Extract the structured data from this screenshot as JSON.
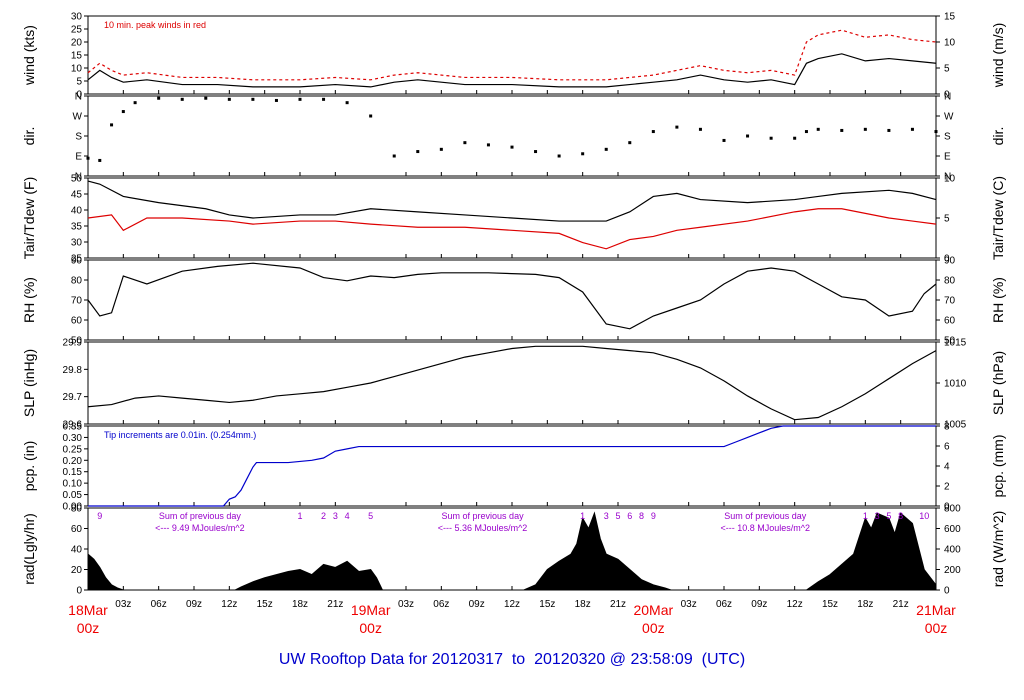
{
  "footer": {
    "title_prefix": "UW Rooftop Data for ",
    "start": "20120317",
    "to_word": "to",
    "end": "20120320",
    "at_word": "@",
    "time": "23:58:09",
    "tz": "(UTC)"
  },
  "colors": {
    "black": "#000000",
    "red": "#dd0000",
    "blue": "#0000cc",
    "purple": "#9900cc",
    "date_red": "#ee0000"
  },
  "x_axis": {
    "hours_total": 72,
    "hour_tick_labels": [
      "03z",
      "06z",
      "09z",
      "12z",
      "15z",
      "18z",
      "21z",
      "03z",
      "06z",
      "09z",
      "12z",
      "15z",
      "18z",
      "21z",
      "03z",
      "06z",
      "09z",
      "12z",
      "15z",
      "18z",
      "21z"
    ],
    "hour_tick_hours": [
      3,
      6,
      9,
      12,
      15,
      18,
      21,
      27,
      30,
      33,
      36,
      39,
      42,
      45,
      51,
      54,
      57,
      60,
      63,
      66,
      69
    ],
    "date_labels": [
      {
        "hour": 0,
        "date": "18Mar",
        "time": "00z"
      },
      {
        "hour": 24,
        "date": "19Mar",
        "time": "00z"
      },
      {
        "hour": 48,
        "date": "20Mar",
        "time": "00z"
      },
      {
        "hour": 72,
        "date": "21Mar",
        "time": "00z"
      }
    ]
  },
  "chart_data": [
    {
      "type": "line",
      "id": "wind",
      "ylabel_left": "wind (kts)",
      "ylabel_right": "wind (m/s)",
      "left_ticks": [
        "0",
        "5",
        "10",
        "15",
        "20",
        "25",
        "30"
      ],
      "right_ticks": [
        "0",
        "5",
        "10",
        "15"
      ],
      "ylim": [
        0,
        33
      ],
      "annotation": "10 min. peak winds in red",
      "series": [
        {
          "color": "black",
          "x": [
            0,
            1,
            2,
            3,
            5,
            8,
            11,
            14,
            18,
            21,
            24,
            26,
            28,
            32,
            36,
            40,
            44,
            48,
            50,
            52,
            54,
            56,
            58,
            60,
            61,
            62,
            64,
            66,
            68,
            70,
            72
          ],
          "y": [
            6,
            10,
            7,
            5,
            6,
            4,
            4,
            3,
            3,
            4,
            3,
            5,
            6,
            4,
            4,
            3,
            3,
            5,
            6,
            8,
            6,
            5,
            6,
            4,
            13,
            15,
            17,
            14,
            15,
            14,
            13
          ]
        },
        {
          "color": "red",
          "x": [
            0,
            1,
            2,
            3,
            5,
            8,
            11,
            14,
            18,
            21,
            24,
            26,
            28,
            32,
            36,
            40,
            44,
            48,
            50,
            52,
            54,
            56,
            58,
            60,
            61,
            62,
            64,
            66,
            68,
            70,
            72
          ],
          "y": [
            9,
            13,
            10,
            8,
            9,
            7,
            7,
            6,
            6,
            7,
            6,
            8,
            9,
            7,
            7,
            6,
            6,
            8,
            10,
            12,
            10,
            9,
            10,
            8,
            22,
            25,
            27,
            24,
            25,
            23,
            22
          ]
        }
      ]
    },
    {
      "type": "scatter",
      "id": "dir",
      "ylabel_left": "dir.",
      "ylabel_right": "dir.",
      "left_ticks": [
        "N",
        "E",
        "S",
        "W",
        "N"
      ],
      "right_ticks": [
        "N",
        "E",
        "S",
        "W",
        "N"
      ],
      "ylim": [
        0,
        360
      ],
      "series": [
        {
          "color": "black",
          "x": [
            0,
            1,
            2,
            3,
            4,
            6,
            8,
            10,
            12,
            14,
            16,
            18,
            20,
            22,
            24,
            26,
            28,
            30,
            32,
            34,
            36,
            38,
            40,
            42,
            44,
            46,
            48,
            50,
            52,
            54,
            56,
            58,
            60,
            61,
            62,
            64,
            66,
            68,
            70,
            72
          ],
          "y": [
            80,
            70,
            230,
            290,
            330,
            350,
            345,
            350,
            345,
            345,
            340,
            345,
            345,
            330,
            270,
            90,
            110,
            120,
            150,
            140,
            130,
            110,
            90,
            100,
            120,
            150,
            200,
            220,
            210,
            160,
            180,
            170,
            170,
            200,
            210,
            205,
            210,
            205,
            210,
            200
          ]
        }
      ]
    },
    {
      "type": "line",
      "id": "temp",
      "ylabel_left": "Tair/Tdew (F)",
      "ylabel_right": "Tair/Tdew (C)",
      "left_ticks": [
        "25",
        "30",
        "35",
        "40",
        "45",
        "50"
      ],
      "right_ticks": [
        "0",
        "5",
        "10"
      ],
      "ylim": [
        24,
        50
      ],
      "series": [
        {
          "name": "Tair",
          "color": "black",
          "x": [
            0,
            1,
            3,
            6,
            10,
            12,
            14,
            18,
            21,
            24,
            28,
            32,
            36,
            40,
            44,
            46,
            48,
            50,
            52,
            56,
            60,
            62,
            64,
            68,
            70,
            72
          ],
          "y": [
            49,
            48,
            44,
            42,
            40,
            38,
            37,
            38,
            38,
            40,
            39,
            38,
            37,
            36,
            36,
            39,
            44,
            45,
            43,
            42,
            43,
            44,
            45,
            46,
            45,
            43
          ]
        },
        {
          "name": "Tdew",
          "color": "red",
          "x": [
            0,
            2,
            3,
            5,
            8,
            12,
            14,
            18,
            21,
            24,
            28,
            32,
            36,
            40,
            42,
            44,
            46,
            48,
            50,
            52,
            56,
            60,
            62,
            64,
            68,
            70,
            72
          ],
          "y": [
            37,
            38,
            33,
            37,
            37,
            36,
            35,
            36,
            36,
            35,
            34,
            34,
            33,
            32,
            29,
            27,
            30,
            31,
            33,
            34,
            36,
            39,
            40,
            40,
            37,
            36,
            35
          ]
        }
      ]
    },
    {
      "type": "line",
      "id": "rh",
      "ylabel_left": "RH (%)",
      "ylabel_right": "RH (%)",
      "left_ticks": [
        "50",
        "60",
        "70",
        "80",
        "90"
      ],
      "right_ticks": [
        "50",
        "60",
        "70",
        "80",
        "90"
      ],
      "ylim": [
        45,
        95
      ],
      "series": [
        {
          "color": "black",
          "x": [
            0,
            1,
            2,
            3,
            5,
            8,
            11,
            14,
            18,
            20,
            22,
            24,
            26,
            28,
            30,
            34,
            38,
            40,
            42,
            44,
            46,
            48,
            50,
            52,
            54,
            56,
            58,
            60,
            62,
            64,
            66,
            68,
            70,
            71,
            72
          ],
          "y": [
            70,
            60,
            62,
            85,
            80,
            88,
            91,
            93,
            90,
            84,
            82,
            85,
            84,
            86,
            87,
            87,
            86,
            84,
            75,
            55,
            52,
            60,
            65,
            70,
            80,
            88,
            90,
            88,
            80,
            72,
            70,
            60,
            63,
            74,
            80
          ]
        }
      ]
    },
    {
      "type": "line",
      "id": "slp",
      "ylabel_left": "SLP (inHg)",
      "ylabel_right": "SLP (hPa)",
      "left_ticks": [
        "29.6",
        "29.7",
        "29.8",
        "29.9"
      ],
      "right_ticks": [
        "1005",
        "1010",
        "1015"
      ],
      "ylim": [
        29.58,
        29.96
      ],
      "series": [
        {
          "color": "black",
          "x": [
            0,
            2,
            4,
            6,
            8,
            10,
            12,
            14,
            16,
            18,
            20,
            22,
            24,
            26,
            28,
            30,
            32,
            34,
            36,
            38,
            40,
            42,
            44,
            46,
            48,
            50,
            52,
            54,
            56,
            58,
            60,
            62,
            64,
            66,
            68,
            70,
            72
          ],
          "y": [
            29.66,
            29.67,
            29.7,
            29.71,
            29.7,
            29.69,
            29.68,
            29.69,
            29.71,
            29.72,
            29.73,
            29.75,
            29.77,
            29.8,
            29.83,
            29.86,
            29.89,
            29.91,
            29.93,
            29.94,
            29.94,
            29.94,
            29.93,
            29.92,
            29.91,
            29.88,
            29.84,
            29.78,
            29.71,
            29.65,
            29.6,
            29.61,
            29.66,
            29.72,
            29.79,
            29.86,
            29.92
          ]
        }
      ]
    },
    {
      "type": "line",
      "id": "pcp",
      "ylabel_left": "pcp. (in)",
      "ylabel_right": "pcp. (mm)",
      "left_ticks": [
        "0.00",
        "0.05",
        "0.10",
        "0.15",
        "0.20",
        "0.25",
        "0.30",
        "0.35"
      ],
      "right_ticks": [
        "0",
        "2",
        "4",
        "6",
        "8"
      ],
      "ylim": [
        0,
        0.35
      ],
      "annotation": "Tip increments are 0.01in. (0.254mm.)",
      "series": [
        {
          "color": "blue",
          "x": [
            0,
            11.5,
            12,
            12.5,
            13,
            13.5,
            14,
            14.3,
            15,
            17,
            19,
            20,
            21,
            22,
            23,
            30,
            40,
            50,
            54,
            55,
            56,
            57,
            58,
            59,
            60,
            72
          ],
          "y": [
            0,
            0,
            0.03,
            0.04,
            0.07,
            0.12,
            0.17,
            0.19,
            0.19,
            0.19,
            0.2,
            0.21,
            0.24,
            0.25,
            0.26,
            0.26,
            0.26,
            0.26,
            0.26,
            0.28,
            0.3,
            0.32,
            0.34,
            0.35,
            0.35,
            0.35
          ]
        }
      ]
    },
    {
      "type": "area",
      "id": "rad",
      "ylabel_left": "rad(Lgly/hr)",
      "ylabel_right": "rad (W/m^2)",
      "left_ticks": [
        "0",
        "20",
        "40",
        "60",
        "80"
      ],
      "right_ticks": [
        "0",
        "200",
        "400",
        "600",
        "800"
      ],
      "ylim": [
        0,
        80
      ],
      "hour_digits": [
        {
          "hour": 1,
          "text": "9"
        },
        {
          "hour": 18,
          "text": "1"
        },
        {
          "hour": 20,
          "text": "2"
        },
        {
          "hour": 21,
          "text": "3"
        },
        {
          "hour": 22,
          "text": "4"
        },
        {
          "hour": 24,
          "text": "5"
        },
        {
          "hour": 42,
          "text": "1"
        },
        {
          "hour": 44,
          "text": "3"
        },
        {
          "hour": 45,
          "text": "5"
        },
        {
          "hour": 46,
          "text": "6"
        },
        {
          "hour": 47,
          "text": "8"
        },
        {
          "hour": 48,
          "text": "9"
        },
        {
          "hour": 66,
          "text": "1"
        },
        {
          "hour": 67,
          "text": "3"
        },
        {
          "hour": 68,
          "text": "5"
        },
        {
          "hour": 69,
          "text": "8"
        },
        {
          "hour": 71,
          "text": "10"
        }
      ],
      "daily_sums": [
        {
          "hour": 9.5,
          "line1": "Sum of previous day",
          "line2": "<--- 9.49 MJoules/m^2"
        },
        {
          "hour": 33.5,
          "line1": "Sum of previous day",
          "line2": "<--- 5.36 MJoules/m^2"
        },
        {
          "hour": 57.5,
          "line1": "Sum of previous day",
          "line2": "<--- 10.8 MJoules/m^2"
        }
      ],
      "series": [
        {
          "color": "black",
          "x": [
            0,
            0.5,
            1,
            1.5,
            2,
            2.5,
            3,
            12.5,
            13,
            14,
            15,
            16,
            17,
            18,
            19,
            20,
            21,
            22,
            23,
            24,
            24.5,
            25,
            37,
            38,
            39,
            40,
            41,
            41.5,
            42,
            42.5,
            43,
            43.5,
            44,
            45,
            46,
            47,
            48,
            49,
            49.5,
            61,
            62,
            63,
            64,
            65,
            66,
            66.5,
            67,
            68,
            68.5,
            69,
            70,
            71,
            72
          ],
          "y": [
            35,
            30,
            22,
            12,
            5,
            2,
            0,
            0,
            3,
            8,
            12,
            15,
            18,
            20,
            15,
            25,
            22,
            28,
            18,
            20,
            12,
            0,
            0,
            5,
            20,
            28,
            35,
            45,
            70,
            60,
            75,
            50,
            35,
            30,
            20,
            10,
            5,
            2,
            0,
            0,
            8,
            15,
            25,
            35,
            70,
            60,
            75,
            70,
            55,
            75,
            65,
            20,
            5
          ]
        }
      ]
    }
  ]
}
